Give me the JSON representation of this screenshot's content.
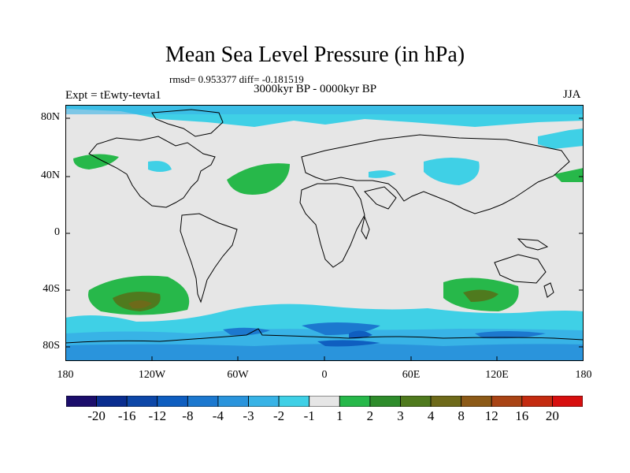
{
  "title": "Mean Sea Level Pressure (in hPa)",
  "stats": "rmsd= 0.953377 diff= -0.181519",
  "experiment": "Expt = tEwty-tevta1",
  "period": "3000kyr BP - 0000kyr BP",
  "season": "JJA",
  "lat_labels": [
    "80N",
    "40N",
    "0",
    "40S",
    "80S"
  ],
  "lon_labels": [
    "180",
    "120W",
    "60W",
    "0",
    "60E",
    "120E",
    "180"
  ],
  "colorbar": {
    "colors": [
      "#1b0d6b",
      "#0a2d8f",
      "#0d47a8",
      "#0f5ec0",
      "#1c78cf",
      "#2a94dc",
      "#38b3e6",
      "#3fd0e6",
      "#e6e6e6",
      "#27b84a",
      "#2e8c2b",
      "#4f7a1e",
      "#6e6a1a",
      "#8c5a17",
      "#a94415",
      "#c42b10",
      "#d70f0f"
    ],
    "labels": [
      "-20",
      "-16",
      "-12",
      "-8",
      "-4",
      "-3",
      "-2",
      "-1",
      "1",
      "2",
      "3",
      "4",
      "8",
      "12",
      "16",
      "20"
    ]
  }
}
